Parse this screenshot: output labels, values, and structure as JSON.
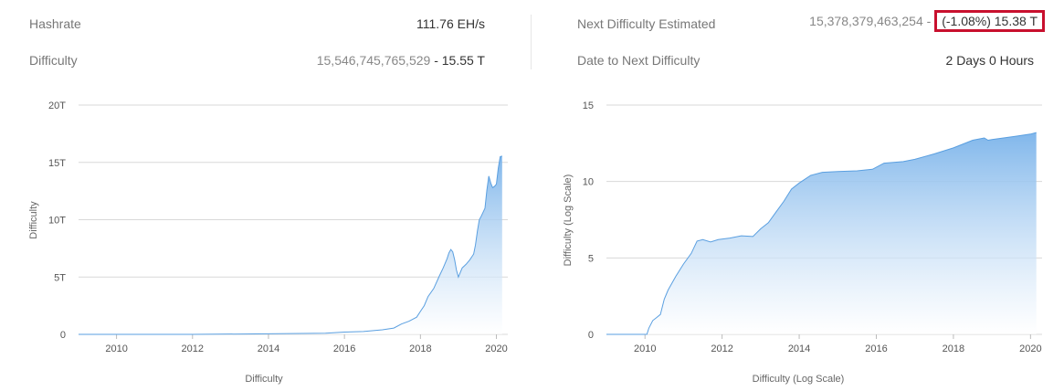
{
  "stats": {
    "hashrate": {
      "label": "Hashrate",
      "value": "111.76 EH/s"
    },
    "difficulty": {
      "label": "Difficulty",
      "value_full": "15,546,745,765,529",
      "separator": " - ",
      "value_short": "15.55 T"
    },
    "next_difficulty": {
      "label": "Next Difficulty Estimated",
      "value_full": "15,378,379,463,254",
      "separator": " - ",
      "highlighted": "(-1.08%) 15.38 T"
    },
    "date_to_next": {
      "label": "Date to Next Difficulty",
      "value": "2 Days 0 Hours"
    }
  },
  "colors": {
    "area_top": "#7ab3ea",
    "area_bottom": "#ffffff",
    "line": "#5a9fe0",
    "highlight_border": "#c8102e",
    "grid": "#d8d8d8"
  },
  "chart_data": [
    {
      "type": "area",
      "title": "",
      "ylabel": "Difficulty",
      "xlabel": "Difficulty",
      "xlim": [
        2009.0,
        2020.3
      ],
      "ylim": [
        0,
        20
      ],
      "x_ticks": [
        "2010",
        "2012",
        "2014",
        "2016",
        "2018",
        "2020"
      ],
      "y_ticks": [
        "0",
        "5T",
        "10T",
        "15T",
        "20T"
      ],
      "series": [
        {
          "x": [
            2009.0,
            2012.0,
            2014.0,
            2015.5,
            2016.0,
            2016.5,
            2017.0,
            2017.3,
            2017.5,
            2017.7,
            2017.9,
            2018.0,
            2018.1,
            2018.2,
            2018.35,
            2018.5,
            2018.6,
            2018.7,
            2018.75,
            2018.8,
            2018.85,
            2018.9,
            2018.95,
            2019.0,
            2019.05,
            2019.1,
            2019.2,
            2019.3,
            2019.4,
            2019.45,
            2019.5,
            2019.55,
            2019.6,
            2019.7,
            2019.75,
            2019.8,
            2019.85,
            2019.9,
            2019.95,
            2020.0,
            2020.05,
            2020.1,
            2020.15
          ],
          "y": [
            0.0,
            0.0,
            0.05,
            0.1,
            0.2,
            0.25,
            0.4,
            0.55,
            0.9,
            1.15,
            1.5,
            2.0,
            2.5,
            3.3,
            4.0,
            5.1,
            5.8,
            6.6,
            7.1,
            7.4,
            7.2,
            6.5,
            5.6,
            5.0,
            5.4,
            5.8,
            6.1,
            6.5,
            7.0,
            7.8,
            9.0,
            10.0,
            10.3,
            11.0,
            12.6,
            13.8,
            13.2,
            12.8,
            12.9,
            13.1,
            14.5,
            15.5,
            15.55
          ]
        }
      ]
    },
    {
      "type": "area",
      "title": "",
      "ylabel": "Difficulty (Log Scale)",
      "xlabel": "Difficulty (Log Scale)",
      "xlim": [
        2009.0,
        2020.3
      ],
      "ylim": [
        0,
        15
      ],
      "x_ticks": [
        "2010",
        "2012",
        "2014",
        "2016",
        "2018",
        "2020"
      ],
      "y_ticks": [
        "0",
        "5",
        "10",
        "15"
      ],
      "series": [
        {
          "x": [
            2009.0,
            2010.05,
            2010.1,
            2010.2,
            2010.3,
            2010.4,
            2010.5,
            2010.6,
            2010.8,
            2011.0,
            2011.2,
            2011.35,
            2011.5,
            2011.7,
            2011.9,
            2012.2,
            2012.5,
            2012.8,
            2013.0,
            2013.2,
            2013.4,
            2013.6,
            2013.8,
            2014.0,
            2014.3,
            2014.6,
            2015.0,
            2015.5,
            2015.9,
            2016.2,
            2016.7,
            2017.0,
            2017.5,
            2018.0,
            2018.5,
            2018.8,
            2018.9,
            2019.0,
            2019.3,
            2019.6,
            2020.0,
            2020.15
          ],
          "y": [
            0.0,
            0.0,
            0.4,
            0.9,
            1.1,
            1.3,
            2.3,
            2.9,
            3.8,
            4.6,
            5.3,
            6.1,
            6.2,
            6.05,
            6.2,
            6.3,
            6.45,
            6.4,
            6.9,
            7.3,
            8.0,
            8.7,
            9.5,
            9.9,
            10.4,
            10.6,
            10.65,
            10.7,
            10.8,
            11.2,
            11.3,
            11.45,
            11.8,
            12.2,
            12.7,
            12.85,
            12.7,
            12.75,
            12.85,
            12.95,
            13.1,
            13.2
          ]
        }
      ]
    }
  ]
}
